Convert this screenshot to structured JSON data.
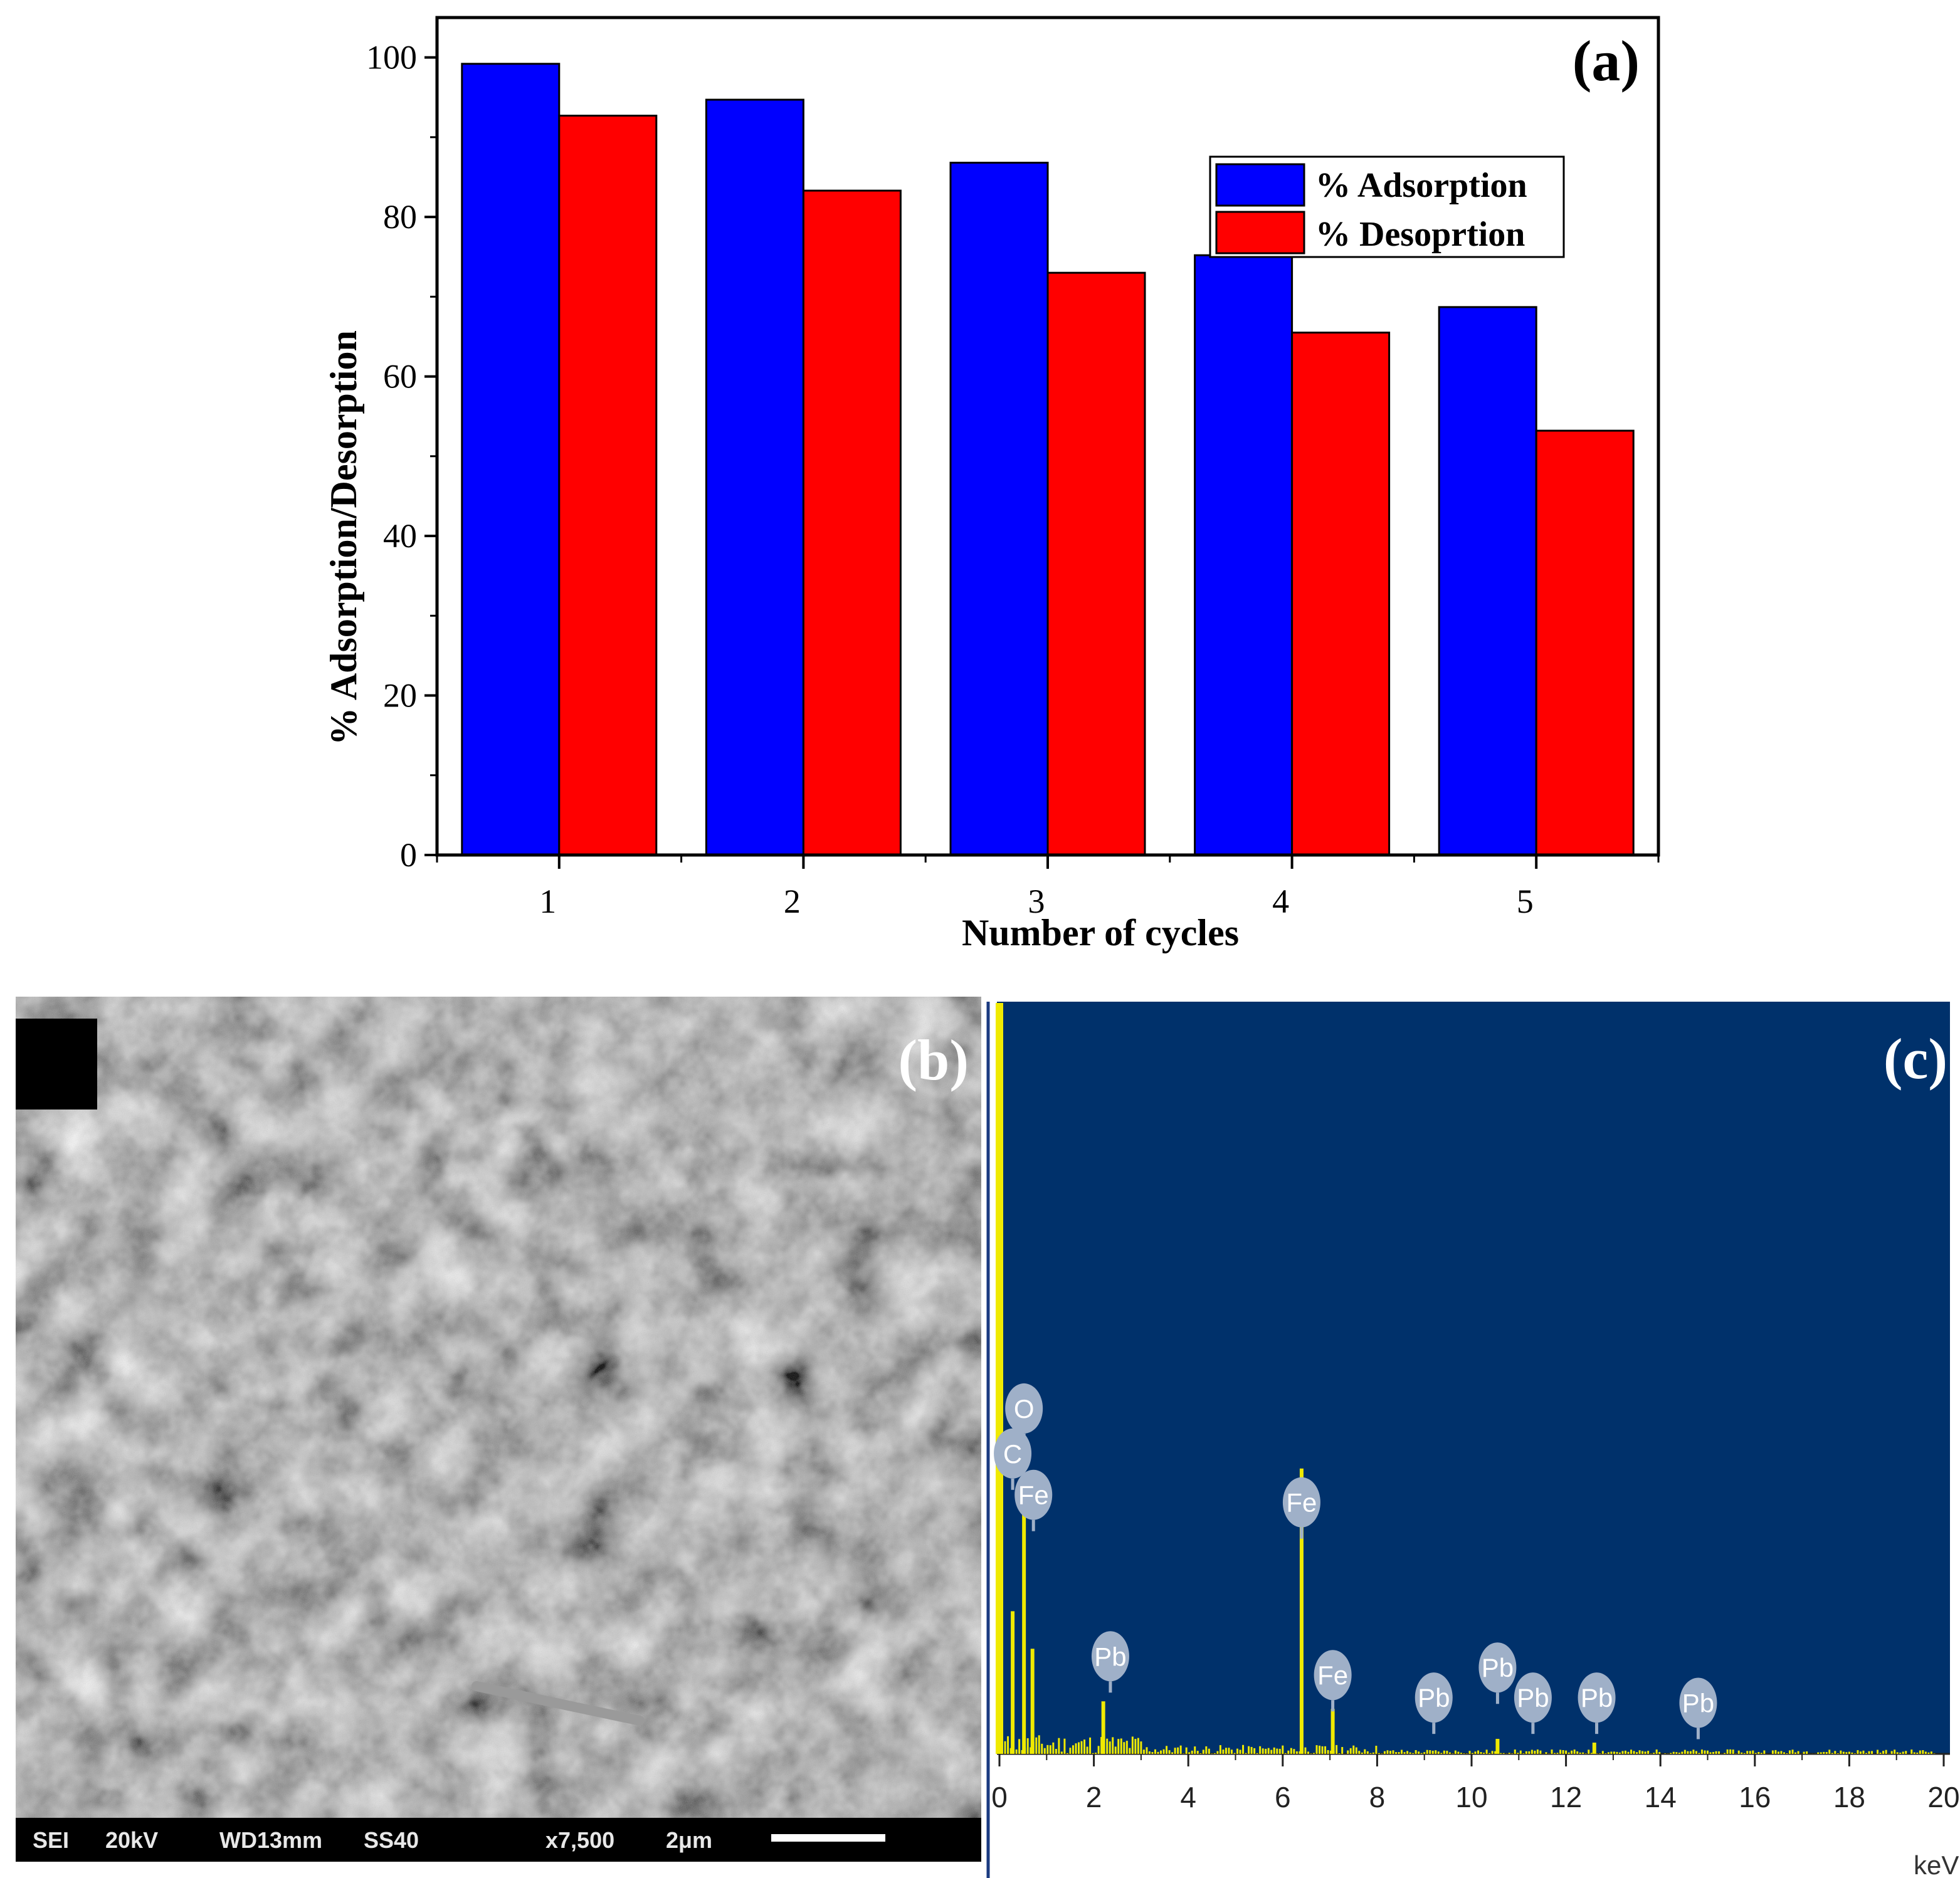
{
  "figure": {
    "panel_a_label": "(a)",
    "panel_b_label": "(b)",
    "panel_c_label": "(c)"
  },
  "chart_data": [
    {
      "type": "bar",
      "title": "",
      "xlabel": "Number of cycles",
      "ylabel": "% Adsorption/Desorption",
      "categories": [
        "1",
        "2",
        "3",
        "4",
        "5"
      ],
      "ylim": [
        0,
        105
      ],
      "yticks": [
        0,
        20,
        40,
        60,
        80,
        100
      ],
      "grid": false,
      "legend_position": "top-right",
      "series": [
        {
          "name": "% Adsorption",
          "color": "#0000ff",
          "values": [
            99.2,
            94.7,
            86.8,
            75.2,
            68.7
          ]
        },
        {
          "name": "% Desoprtion",
          "color": "#ff0000",
          "values": [
            92.7,
            83.3,
            73.0,
            65.5,
            53.2
          ]
        }
      ]
    },
    {
      "type": "line",
      "title": "",
      "xlabel": "keV",
      "ylabel": "",
      "xlim": [
        0,
        20
      ],
      "xticks": [
        0,
        2,
        4,
        6,
        8,
        10,
        12,
        14,
        16,
        18,
        20
      ],
      "xtick_labels": [
        "0",
        "2",
        "4",
        "6",
        "8",
        "10",
        "12",
        "14",
        "16",
        "18",
        "20"
      ],
      "ylim": [
        0,
        100
      ],
      "background_color": "#00316b",
      "series_color": "#f0ea00",
      "peaks": [
        {
          "x": 0.0,
          "y": 100
        },
        {
          "x": 0.28,
          "y": 19
        },
        {
          "x": 0.52,
          "y": 33
        },
        {
          "x": 0.7,
          "y": 14
        },
        {
          "x": 2.2,
          "y": 7
        },
        {
          "x": 6.4,
          "y": 38
        },
        {
          "x": 7.06,
          "y": 6
        },
        {
          "x": 10.55,
          "y": 2
        },
        {
          "x": 12.6,
          "y": 1.5
        }
      ],
      "element_labels": [
        {
          "text": "O",
          "x": 0.52,
          "y": 46
        },
        {
          "text": "C",
          "x": 0.28,
          "y": 40
        },
        {
          "text": "Fe",
          "x": 0.72,
          "y": 34.5
        },
        {
          "text": "Pb",
          "x": 2.35,
          "y": 13
        },
        {
          "text": "Fe",
          "x": 6.4,
          "y": 33.5
        },
        {
          "text": "Fe",
          "x": 7.06,
          "y": 10.5
        },
        {
          "text": "Pb",
          "x": 9.2,
          "y": 7.5
        },
        {
          "text": "Pb",
          "x": 10.55,
          "y": 11.5
        },
        {
          "text": "Pb",
          "x": 11.3,
          "y": 7.5
        },
        {
          "text": "Pb",
          "x": 12.65,
          "y": 7.5
        },
        {
          "text": "Pb",
          "x": 14.8,
          "y": 6.8
        }
      ]
    }
  ],
  "sem_image": {
    "databar": [
      "SEI",
      "20kV",
      "WD13mm",
      "SS40",
      "x7,500",
      "2μm"
    ]
  }
}
